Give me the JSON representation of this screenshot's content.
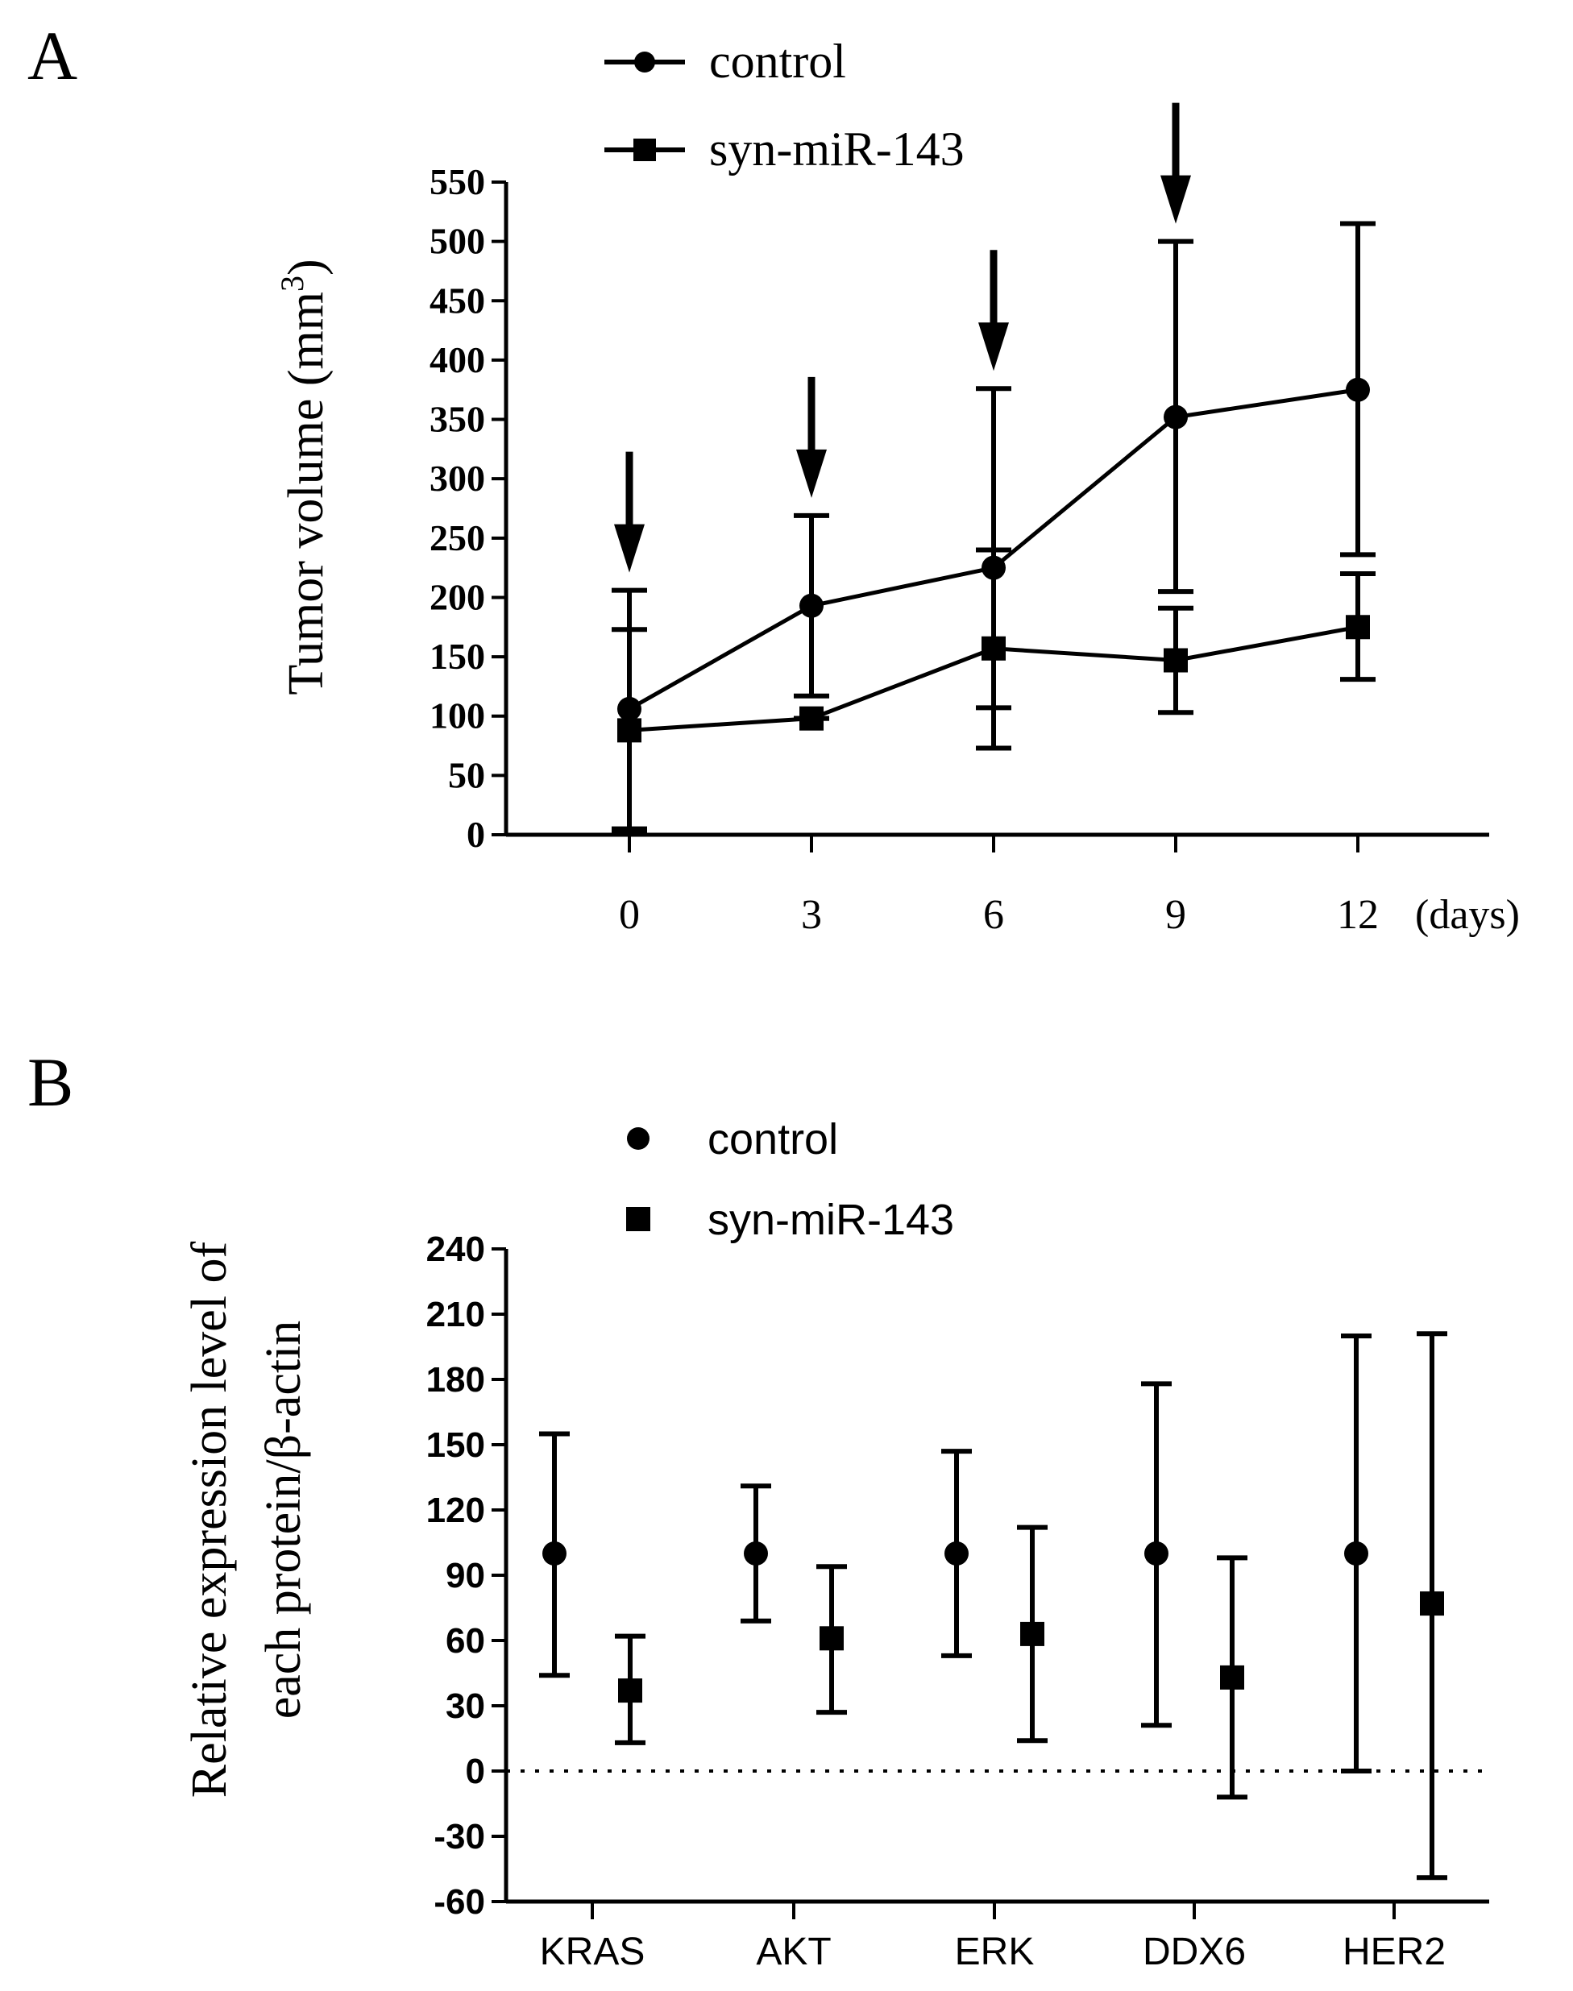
{
  "panels": {
    "a": {
      "letter": "A"
    },
    "b": {
      "letter": "B"
    }
  },
  "chart_data": [
    {
      "type": "line",
      "panel": "A",
      "title": "",
      "xlabel": "",
      "x_unit_label": "(days)",
      "ylabel": "Tumor volume (mm",
      "ylabel_superscript": "3",
      "ylabel_close": ")",
      "x": [
        0,
        3,
        6,
        9,
        12
      ],
      "xlim": [
        -2,
        14
      ],
      "ylim": [
        0,
        550
      ],
      "yticks": [
        0,
        50,
        100,
        150,
        200,
        250,
        300,
        350,
        400,
        450,
        500,
        550
      ],
      "treatment_arrows_at_days": [
        0,
        3,
        6,
        9
      ],
      "legend_position": "top-center",
      "series": [
        {
          "name": "control",
          "marker": "circle",
          "values": [
            106,
            193,
            225,
            352,
            375
          ],
          "error_low": [
            5,
            117,
            107,
            205,
            236
          ],
          "error_high": [
            206,
            269,
            376,
            500,
            515
          ]
        },
        {
          "name": "syn-miR-143",
          "marker": "square",
          "values": [
            88,
            98,
            157,
            147,
            175
          ],
          "error_low": [
            3,
            98,
            73,
            103,
            131
          ],
          "error_high": [
            173,
            98,
            240,
            191,
            220
          ]
        }
      ]
    },
    {
      "type": "scatter",
      "panel": "B",
      "title": "",
      "xlabel": "",
      "ylabel_line1": "Relative expression level of",
      "ylabel_line2": "each protein/β-actin",
      "categories": [
        "KRAS",
        "AKT",
        "ERK",
        "DDX6",
        "HER2"
      ],
      "ylim": [
        -60,
        240
      ],
      "yticks": [
        -60,
        -30,
        0,
        30,
        60,
        90,
        120,
        150,
        180,
        210,
        240
      ],
      "reference_line_y": 0,
      "legend_position": "top-center",
      "series": [
        {
          "name": "control",
          "marker": "circle",
          "values": [
            100,
            100,
            100,
            100,
            100
          ],
          "error_low": [
            44,
            69,
            53,
            21,
            0
          ],
          "error_high": [
            155,
            131,
            147,
            178,
            200
          ]
        },
        {
          "name": "syn-miR-143",
          "marker": "square",
          "values": [
            37,
            61,
            63,
            43,
            77
          ],
          "error_low": [
            13,
            27,
            14,
            -12,
            -49
          ],
          "error_high": [
            62,
            94,
            112,
            98,
            201
          ]
        }
      ]
    }
  ]
}
